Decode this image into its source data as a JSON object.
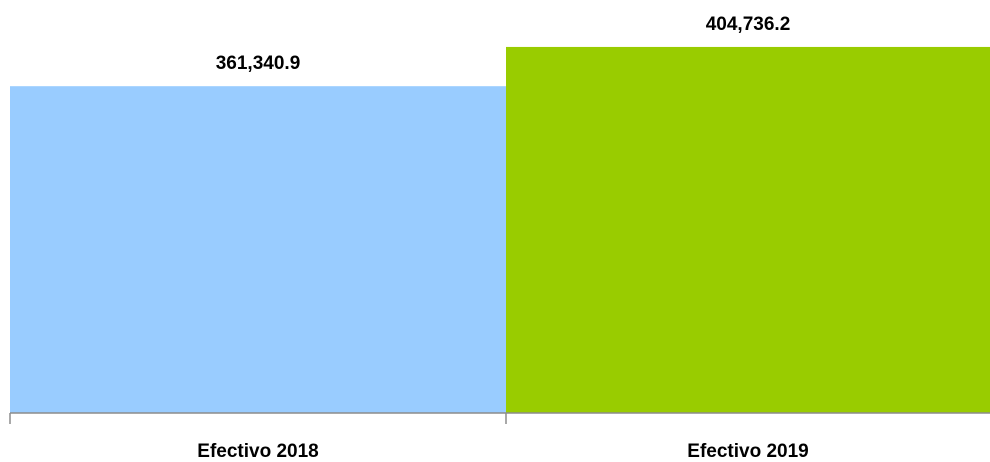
{
  "chart_data": {
    "type": "bar",
    "categories": [
      "Efectivo 2018",
      "Efectivo 2019"
    ],
    "values": [
      361340.9,
      404736.2
    ],
    "value_labels": [
      "361,340.9",
      "404,736.2"
    ],
    "colors": [
      "#99ccff",
      "#99cc00"
    ],
    "axis_color": "#8c8c8c",
    "ylim": [
      0,
      450000
    ],
    "grid": false,
    "legend": "none",
    "title": "",
    "xlabel": "",
    "ylabel": ""
  }
}
